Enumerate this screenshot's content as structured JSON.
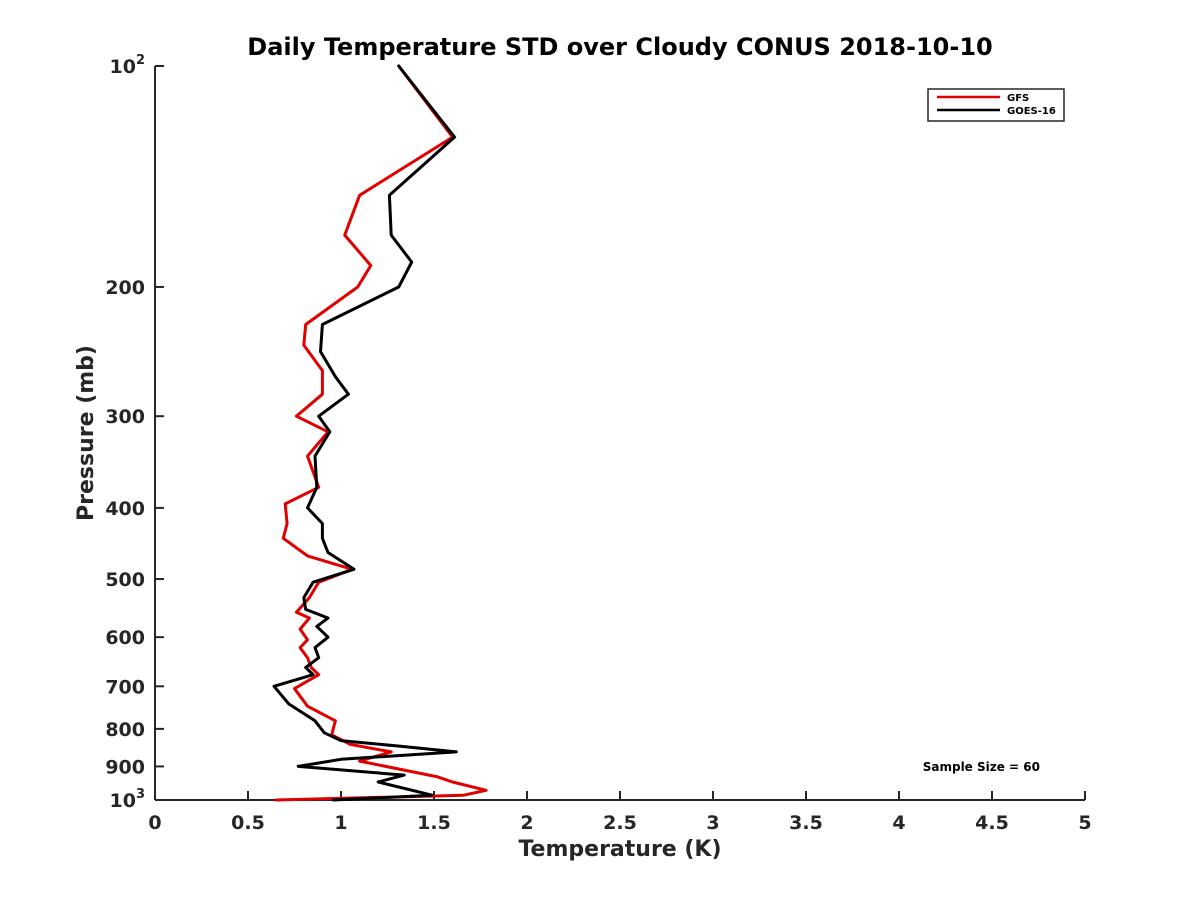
{
  "chart_data": {
    "type": "line",
    "title": "Daily Temperature STD over Cloudy CONUS 2018-10-10",
    "xlabel": "Temperature (K)",
    "ylabel": "Pressure (mb)",
    "xlim": [
      0,
      5
    ],
    "ylim": [
      100,
      1000
    ],
    "yscale": "log",
    "y_reversed": true,
    "grid": false,
    "legend_position": "top-right",
    "x_ticks": [
      0,
      0.5,
      1,
      1.5,
      2,
      2.5,
      3,
      3.5,
      4,
      4.5,
      5
    ],
    "x_tick_labels": [
      "0",
      "0.5",
      "1",
      "1.5",
      "2",
      "2.5",
      "3",
      "3.5",
      "4",
      "4.5",
      "5"
    ],
    "y_ticks": [
      {
        "value": 100,
        "base": "10",
        "exp": "2"
      },
      {
        "value": 200,
        "label": "200"
      },
      {
        "value": 300,
        "label": "300"
      },
      {
        "value": 400,
        "label": "400"
      },
      {
        "value": 500,
        "label": "500"
      },
      {
        "value": 600,
        "label": "600"
      },
      {
        "value": 700,
        "label": "700"
      },
      {
        "value": 800,
        "label": "800"
      },
      {
        "value": 900,
        "label": "900"
      },
      {
        "value": 1000,
        "base": "10",
        "exp": "3"
      }
    ],
    "annotation": "Sample Size = 60",
    "series": [
      {
        "name": "GFS",
        "color": "#e00000",
        "points": [
          [
            1.31,
            100
          ],
          [
            1.6,
            125
          ],
          [
            1.1,
            150
          ],
          [
            1.02,
            170
          ],
          [
            1.16,
            187
          ],
          [
            1.09,
            200
          ],
          [
            0.81,
            225
          ],
          [
            0.8,
            240
          ],
          [
            0.9,
            260
          ],
          [
            0.9,
            280
          ],
          [
            0.76,
            300
          ],
          [
            0.93,
            315
          ],
          [
            0.82,
            340
          ],
          [
            0.88,
            375
          ],
          [
            0.7,
            395
          ],
          [
            0.71,
            420
          ],
          [
            0.69,
            440
          ],
          [
            0.82,
            465
          ],
          [
            1.06,
            485
          ],
          [
            0.88,
            505
          ],
          [
            0.83,
            530
          ],
          [
            0.76,
            555
          ],
          [
            0.83,
            565
          ],
          [
            0.78,
            585
          ],
          [
            0.82,
            605
          ],
          [
            0.78,
            620
          ],
          [
            0.82,
            640
          ],
          [
            0.84,
            660
          ],
          [
            0.88,
            675
          ],
          [
            0.75,
            705
          ],
          [
            0.82,
            745
          ],
          [
            0.97,
            780
          ],
          [
            0.95,
            815
          ],
          [
            1.05,
            840
          ],
          [
            1.27,
            860
          ],
          [
            1.1,
            885
          ],
          [
            1.52,
            930
          ],
          [
            1.6,
            945
          ],
          [
            1.78,
            970
          ],
          [
            1.66,
            985
          ],
          [
            0.65,
            1000
          ]
        ]
      },
      {
        "name": "GOES-16",
        "color": "#000000",
        "points": [
          [
            1.31,
            100
          ],
          [
            1.61,
            125
          ],
          [
            1.26,
            150
          ],
          [
            1.27,
            170
          ],
          [
            1.38,
            185
          ],
          [
            1.31,
            200
          ],
          [
            0.9,
            225
          ],
          [
            0.89,
            245
          ],
          [
            0.97,
            265
          ],
          [
            1.04,
            280
          ],
          [
            0.88,
            300
          ],
          [
            0.94,
            315
          ],
          [
            0.86,
            340
          ],
          [
            0.87,
            375
          ],
          [
            0.82,
            400
          ],
          [
            0.9,
            420
          ],
          [
            0.9,
            440
          ],
          [
            0.93,
            460
          ],
          [
            1.07,
            485
          ],
          [
            0.85,
            505
          ],
          [
            0.8,
            530
          ],
          [
            0.81,
            550
          ],
          [
            0.93,
            565
          ],
          [
            0.87,
            580
          ],
          [
            0.93,
            600
          ],
          [
            0.86,
            620
          ],
          [
            0.88,
            640
          ],
          [
            0.81,
            660
          ],
          [
            0.85,
            675
          ],
          [
            0.64,
            700
          ],
          [
            0.72,
            740
          ],
          [
            0.86,
            780
          ],
          [
            0.91,
            810
          ],
          [
            1.0,
            830
          ],
          [
            1.32,
            845
          ],
          [
            1.62,
            860
          ],
          [
            1.0,
            880
          ],
          [
            0.77,
            900
          ],
          [
            1.34,
            925
          ],
          [
            1.2,
            945
          ],
          [
            1.49,
            985
          ],
          [
            0.96,
            1000
          ]
        ]
      }
    ]
  }
}
